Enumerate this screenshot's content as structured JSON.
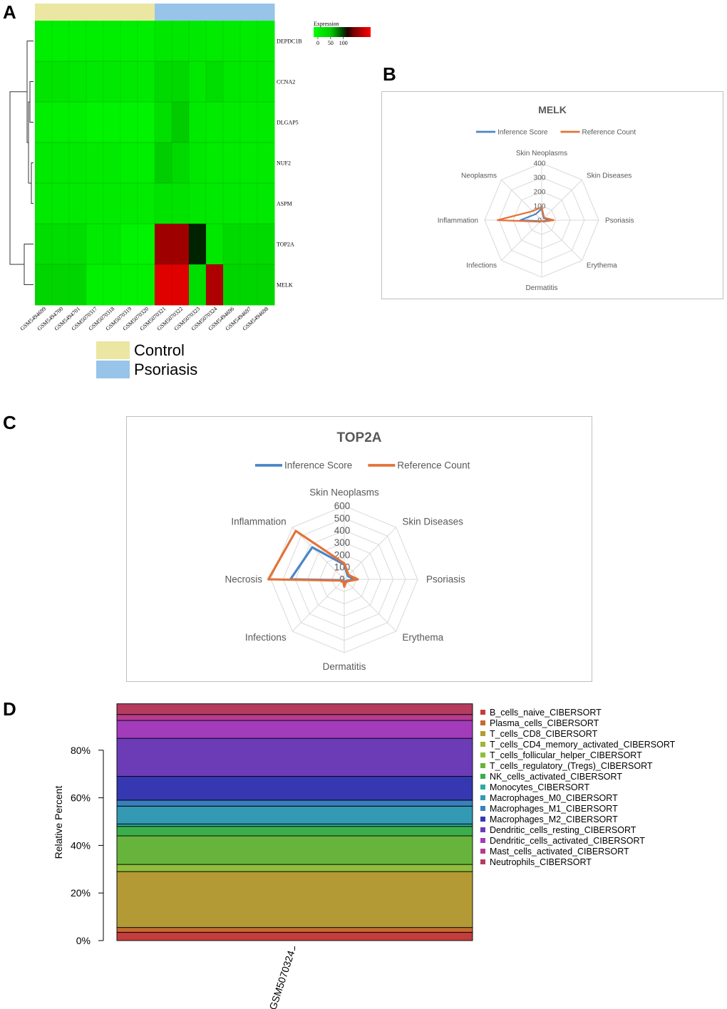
{
  "panel_labels": [
    "A",
    "B",
    "C",
    "D"
  ],
  "chart_data": [
    {
      "type": "heatmap",
      "panel": "A",
      "rows": [
        "DEPDC1B",
        "CCNA2",
        "DLGAP5",
        "NUF2",
        "ASPM",
        "TOP2A",
        "MELK"
      ],
      "columns": [
        "GSM5494699",
        "GSM5494700",
        "GSM5494701",
        "GSM5070317",
        "GSM5070318",
        "GSM5070319",
        "GSM5070320",
        "GSM5070321",
        "GSM5070322",
        "GSM5070323",
        "GSM5070324",
        "GSM5494696",
        "GSM5494697",
        "GSM5494698"
      ],
      "column_groups": [
        "Control",
        "Control",
        "Control",
        "Control",
        "Control",
        "Control",
        "Control",
        "Psoriasis",
        "Psoriasis",
        "Psoriasis",
        "Psoriasis",
        "Psoriasis",
        "Psoriasis",
        "Psoriasis"
      ],
      "values": [
        [
          14,
          14,
          14,
          14,
          14,
          14,
          14,
          20,
          20,
          18,
          16,
          16,
          16,
          16
        ],
        [
          22,
          22,
          20,
          18,
          18,
          18,
          18,
          30,
          32,
          20,
          28,
          20,
          20,
          20
        ],
        [
          14,
          14,
          14,
          10,
          10,
          10,
          10,
          26,
          42,
          18,
          16,
          16,
          16,
          16
        ],
        [
          18,
          18,
          18,
          16,
          16,
          14,
          14,
          40,
          30,
          20,
          16,
          16,
          16,
          16
        ],
        [
          18,
          18,
          18,
          16,
          16,
          16,
          16,
          24,
          24,
          20,
          18,
          18,
          18,
          18
        ],
        [
          28,
          28,
          28,
          16,
          18,
          10,
          10,
          110,
          110,
          75,
          20,
          30,
          30,
          30
        ],
        [
          34,
          34,
          34,
          12,
          12,
          12,
          12,
          130,
          130,
          28,
          115,
          34,
          34,
          34
        ]
      ],
      "legend": {
        "title": "Expression",
        "ticks": [
          "0",
          "50",
          "100"
        ],
        "range": [
          0,
          140
        ]
      },
      "group_legend": [
        {
          "label": "Control",
          "color": "#ebe6a2"
        },
        {
          "label": "Psoriasis",
          "color": "#97c4e8"
        }
      ]
    },
    {
      "type": "radar",
      "panel": "B",
      "title": "MELK",
      "axes": [
        "Skin Neoplasms",
        "Skin Diseases",
        "Psoriasis",
        "Erythema",
        "Dermatitis",
        "Infections",
        "Inflammation",
        "Neoplasms"
      ],
      "tick_labels": [
        "0",
        "100",
        "200",
        "300",
        "400"
      ],
      "range": [
        0,
        400
      ],
      "series": [
        {
          "name": "Inference Score",
          "color": "#4a86c5",
          "values": [
            80,
            20,
            55,
            10,
            5,
            10,
            150,
            60
          ]
        },
        {
          "name": "Reference Count",
          "color": "#e2733a",
          "values": [
            90,
            25,
            85,
            15,
            5,
            15,
            310,
            90
          ]
        }
      ]
    },
    {
      "type": "radar",
      "panel": "C",
      "title": "TOP2A",
      "axes": [
        "Skin Neoplasms",
        "Skin Diseases",
        "Psoriasis",
        "Erythema",
        "Dermatitis",
        "Infections",
        "Necrosis",
        "Inflammation"
      ],
      "tick_labels": [
        "0",
        "100",
        "200",
        "300",
        "400",
        "500",
        "600"
      ],
      "range": [
        0,
        600
      ],
      "series": [
        {
          "name": "Inference Score",
          "color": "#4a86c5",
          "values": [
            120,
            40,
            80,
            20,
            50,
            10,
            440,
            370
          ]
        },
        {
          "name": "Reference Count",
          "color": "#e2733a",
          "values": [
            130,
            50,
            110,
            25,
            60,
            15,
            620,
            560
          ]
        }
      ]
    },
    {
      "type": "bar",
      "stacked": true,
      "panel": "D",
      "ylabel": "Relative Percent",
      "y_ticks": [
        "0%",
        "20%",
        "40%",
        "60%",
        "80%"
      ],
      "categories": [
        "GSM5070324"
      ],
      "series": [
        {
          "name": "B_cells_naive_CIBERSORT",
          "color": "#c43c3c",
          "values": [
            3.5
          ]
        },
        {
          "name": "Plasma_cells_CIBERSORT",
          "color": "#c46b33",
          "values": [
            2.0
          ]
        },
        {
          "name": "T_cells_CD8_CIBERSORT",
          "color": "#b39a35",
          "values": [
            23.5
          ]
        },
        {
          "name": "T_cells_CD4_memory_activated_CIBERSORT",
          "color": "#a3b437",
          "values": [
            0.0
          ]
        },
        {
          "name": "T_cells_follicular_helper_CIBERSORT",
          "color": "#8ebe3c",
          "values": [
            3.0
          ]
        },
        {
          "name": "T_cells_regulatory_(Tregs)_CIBERSORT",
          "color": "#67b43c",
          "values": [
            12.0
          ]
        },
        {
          "name": "NK_cells_activated_CIBERSORT",
          "color": "#3aae4a",
          "values": [
            4.0
          ]
        },
        {
          "name": "Monocytes_CIBERSORT",
          "color": "#33a8a0",
          "values": [
            1.0
          ]
        },
        {
          "name": "Macrophages_M0_CIBERSORT",
          "color": "#3499b3",
          "values": [
            7.5
          ]
        },
        {
          "name": "Macrophages_M1_CIBERSORT",
          "color": "#3a7fbf",
          "values": [
            2.5
          ]
        },
        {
          "name": "Macrophages_M2_CIBERSORT",
          "color": "#3538b0",
          "values": [
            10.0
          ]
        },
        {
          "name": "Dendritic_cells_resting_CIBERSORT",
          "color": "#6b3cb6",
          "values": [
            16.0
          ]
        },
        {
          "name": "Dendritic_cells_activated_CIBERSORT",
          "color": "#a23cbb",
          "values": [
            7.5
          ]
        },
        {
          "name": "Mast_cells_activated_CIBERSORT",
          "color": "#b63c8e",
          "values": [
            2.5
          ]
        },
        {
          "name": "Neutrophils_CIBERSORT",
          "color": "#b43c5e",
          "values": [
            4.5
          ]
        }
      ]
    }
  ]
}
